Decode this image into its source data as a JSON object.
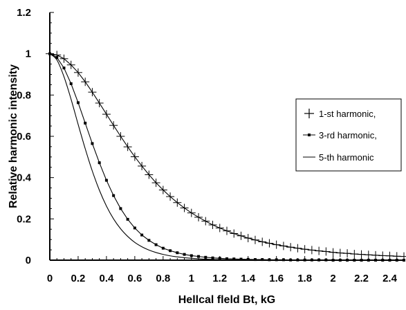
{
  "chart_data": {
    "type": "line",
    "title": "",
    "xlabel": "Hellcal fleld Bt, kG",
    "ylabel": "Relative harmonic intensity",
    "xlim": [
      0,
      2.5
    ],
    "ylim": [
      0,
      1.2
    ],
    "xticks": [
      "0",
      "0.2",
      "0.4",
      "0.6",
      "0.8",
      "1",
      "1.2",
      "1.4",
      "1.6",
      "1.8",
      "2",
      "2.2",
      "2.4"
    ],
    "yticks": [
      "0",
      "0.2",
      "0.4",
      "0.6",
      "0.8",
      "1",
      "1.2"
    ],
    "grid": false,
    "legend_position": "right",
    "series": [
      {
        "name": "1-st harmonic,",
        "marker": "plus",
        "color": "#000000",
        "x": [
          0,
          0.05,
          0.1,
          0.15,
          0.2,
          0.25,
          0.3,
          0.35,
          0.4,
          0.45,
          0.5,
          0.55,
          0.6,
          0.65,
          0.7,
          0.75,
          0.8,
          0.85,
          0.9,
          0.95,
          1.0,
          1.05,
          1.1,
          1.15,
          1.2,
          1.25,
          1.3,
          1.35,
          1.4,
          1.45,
          1.5,
          1.55,
          1.6,
          1.65,
          1.7,
          1.75,
          1.8,
          1.85,
          1.9,
          1.95,
          2.0,
          2.05,
          2.1,
          2.15,
          2.2,
          2.25,
          2.3,
          2.35,
          2.4,
          2.45,
          2.5
        ],
        "y": [
          1.0,
          0.994,
          0.976,
          0.946,
          0.909,
          0.864,
          0.814,
          0.761,
          0.707,
          0.653,
          0.6,
          0.549,
          0.501,
          0.456,
          0.414,
          0.375,
          0.34,
          0.308,
          0.279,
          0.253,
          0.229,
          0.208,
          0.189,
          0.171,
          0.156,
          0.142,
          0.129,
          0.118,
          0.107,
          0.098,
          0.089,
          0.082,
          0.075,
          0.069,
          0.063,
          0.058,
          0.053,
          0.049,
          0.045,
          0.042,
          0.038,
          0.035,
          0.033,
          0.03,
          0.028,
          0.026,
          0.024,
          0.022,
          0.021,
          0.019,
          0.018
        ]
      },
      {
        "name": "3-rd harmonic,",
        "marker": "square",
        "color": "#000000",
        "x": [
          0,
          0.05,
          0.1,
          0.15,
          0.2,
          0.25,
          0.3,
          0.35,
          0.4,
          0.45,
          0.5,
          0.55,
          0.6,
          0.65,
          0.7,
          0.75,
          0.8,
          0.85,
          0.9,
          0.95,
          1.0,
          1.05,
          1.1,
          1.15,
          1.2,
          1.25,
          1.3,
          1.35,
          1.4,
          1.45,
          1.5,
          1.55,
          1.6,
          1.65,
          1.7,
          1.75,
          1.8,
          1.85,
          1.9,
          1.95,
          2.0,
          2.05,
          2.1,
          2.15,
          2.2,
          2.25,
          2.3,
          2.35,
          2.4,
          2.45,
          2.5
        ],
        "y": [
          1.0,
          0.982,
          0.931,
          0.855,
          0.763,
          0.664,
          0.565,
          0.472,
          0.387,
          0.313,
          0.25,
          0.198,
          0.156,
          0.122,
          0.096,
          0.075,
          0.058,
          0.046,
          0.036,
          0.028,
          0.022,
          0.018,
          0.014,
          0.011,
          0.009,
          0.007,
          0.006,
          0.005,
          0.004,
          0.003,
          0.003,
          0.002,
          0.002,
          0.002,
          0.001,
          0.001,
          0.001,
          0.001,
          0.001,
          0.001,
          0.0,
          0.0,
          0.0,
          0.0,
          0.0,
          0.0,
          0.0,
          0.0,
          0.0,
          0.0,
          0.0
        ]
      },
      {
        "name": "5-th harmonic",
        "marker": "none",
        "color": "#000000",
        "x": [
          0,
          0.05,
          0.1,
          0.15,
          0.2,
          0.25,
          0.3,
          0.35,
          0.4,
          0.45,
          0.5,
          0.55,
          0.6,
          0.65,
          0.7,
          0.75,
          0.8,
          0.85,
          0.9,
          0.95,
          1.0,
          1.1,
          1.2,
          1.3,
          1.4,
          1.5,
          1.6,
          1.8,
          2.0,
          2.2,
          2.5
        ],
        "y": [
          1.0,
          0.97,
          0.889,
          0.78,
          0.658,
          0.54,
          0.432,
          0.339,
          0.262,
          0.2,
          0.152,
          0.115,
          0.086,
          0.065,
          0.049,
          0.037,
          0.028,
          0.021,
          0.016,
          0.012,
          0.009,
          0.005,
          0.003,
          0.002,
          0.001,
          0.001,
          0.0,
          0.0,
          0.0,
          0.0,
          0.0
        ]
      }
    ]
  }
}
